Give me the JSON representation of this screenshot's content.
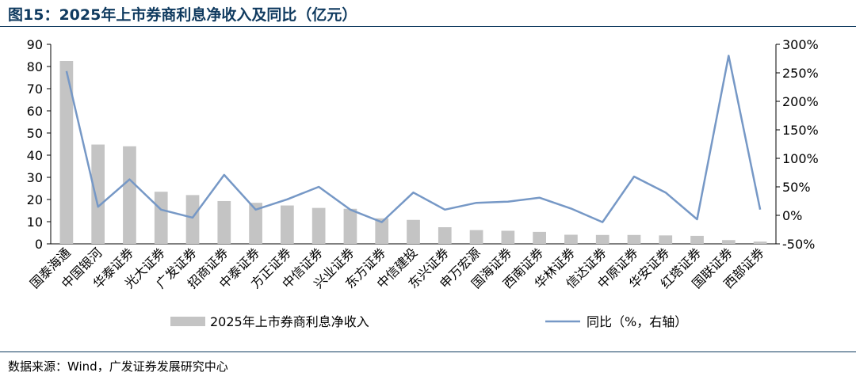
{
  "title": "图15：2025年上市券商利息净收入及同比（亿元）",
  "source": "数据来源：Wind，广发证券发展研究中心",
  "colors": {
    "bar": "#c4c4c4",
    "line": "#7698c6",
    "title": "#0f3a5f",
    "axis": "#000000"
  },
  "chart_data": {
    "type": "bar+line",
    "categories": [
      "国泰海通",
      "中国银河",
      "华泰证券",
      "光大证券",
      "广发证券",
      "招商证券",
      "中泰证券",
      "方正证券",
      "中信证券",
      "兴业证券",
      "东方证券",
      "中信建投",
      "东兴证券",
      "申万宏源",
      "国海证券",
      "西南证券",
      "华林证券",
      "信达证券",
      "中原证券",
      "华安证券",
      "红塔证券",
      "国联证券",
      "西部证券"
    ],
    "series": [
      {
        "name": "2025年上市券商利息净收入",
        "type": "bar",
        "axis": "left",
        "values": [
          82.5,
          44.8,
          44.0,
          23.5,
          22.0,
          19.3,
          18.5,
          17.3,
          16.2,
          15.8,
          11.5,
          10.8,
          7.5,
          6.2,
          5.9,
          5.4,
          4.1,
          4.0,
          4.0,
          3.8,
          3.6,
          1.7,
          1.0
        ]
      },
      {
        "name": "同比（%，右轴）",
        "type": "line",
        "axis": "right",
        "values": [
          253,
          15,
          63,
          10,
          -4,
          71,
          10,
          28,
          50,
          10,
          -12,
          40,
          10,
          22,
          24,
          31,
          12,
          -12,
          68,
          40,
          -7,
          280,
          10
        ]
      }
    ],
    "y_left": {
      "min": 0,
      "max": 90,
      "ticks": [
        "0",
        "10",
        "20",
        "30",
        "40",
        "50",
        "60",
        "70",
        "80",
        "90"
      ]
    },
    "y_right": {
      "min": -50,
      "max": 300,
      "ticks": [
        "-50%",
        "0%",
        "50%",
        "100%",
        "150%",
        "200%",
        "250%",
        "300%"
      ]
    },
    "legend_placement": "bottom",
    "grid": false
  }
}
